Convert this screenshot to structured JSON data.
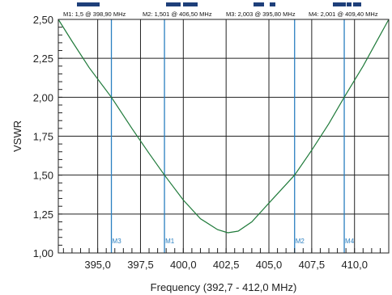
{
  "chart_data": {
    "type": "line",
    "xlabel": "Frequency (392,7 - 412,0 MHz)",
    "ylabel": "VSWR",
    "xlim": [
      392.7,
      412.0
    ],
    "ylim": [
      1.0,
      2.5
    ],
    "x_ticks": [
      "395,0",
      "397,5",
      "400,0",
      "402,5",
      "405,0",
      "407,5",
      "410,0"
    ],
    "y_ticks": [
      "1,00",
      "1,25",
      "1,50",
      "1,75",
      "2,00",
      "2,25",
      "2,50"
    ],
    "x_tick_values": [
      395.0,
      397.5,
      400.0,
      402.5,
      405.0,
      407.5,
      410.0
    ],
    "y_tick_values": [
      1.0,
      1.25,
      1.5,
      1.75,
      2.0,
      2.25,
      2.5
    ],
    "grid": true,
    "series": [
      {
        "color": "#1f7a3a",
        "x": [
          392.7,
          393.5,
          394.5,
          395.8,
          397.0,
          398.0,
          398.9,
          400.0,
          401.0,
          402.0,
          402.6,
          403.2,
          404.0,
          405.0,
          406.0,
          406.5,
          407.5,
          408.5,
          409.4,
          410.5,
          411.5,
          412.0
        ],
        "y": [
          2.5,
          2.36,
          2.19,
          2.0,
          1.8,
          1.64,
          1.5,
          1.34,
          1.22,
          1.15,
          1.13,
          1.14,
          1.2,
          1.32,
          1.44,
          1.5,
          1.66,
          1.83,
          2.0,
          2.2,
          2.4,
          2.5
        ]
      }
    ],
    "markers": [
      {
        "id": "M1",
        "label": "M1",
        "x": 398.9,
        "y": 1.5,
        "header": "M1: 1,5  @ 398,90 MHz"
      },
      {
        "id": "M2",
        "label": "M2",
        "x": 406.5,
        "y": 1.501,
        "header": "M2: 1,501  @ 406,50 MHz"
      },
      {
        "id": "M3",
        "label": "M3",
        "x": 395.8,
        "y": 2.003,
        "header": "M3: 2,003  @ 395,80 MHz"
      },
      {
        "id": "M4",
        "label": "M4",
        "x": 409.4,
        "y": 2.001,
        "header": "M4: 2,001  @ 409,40 MHz"
      }
    ],
    "colors": {
      "trace": "#1f7a3a",
      "marker": "#2a7fc0",
      "indicator": "#1e3f7a",
      "grid": "#222222"
    }
  }
}
